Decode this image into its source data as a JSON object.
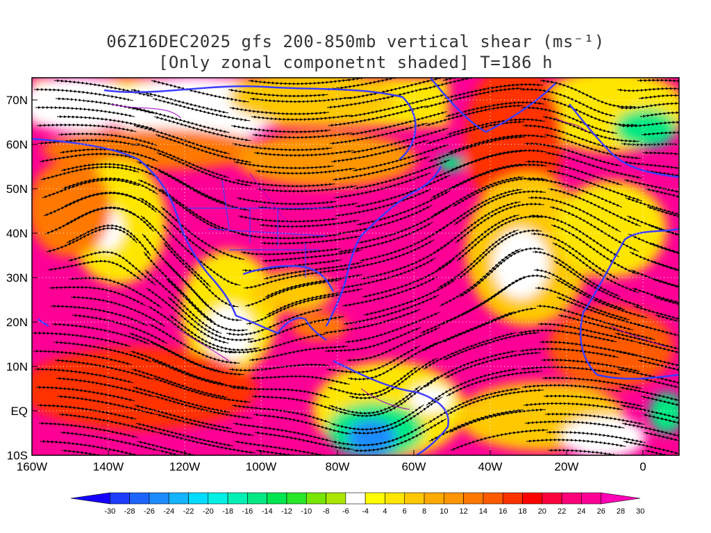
{
  "title": {
    "line1": "06Z16DEC2025 gfs 200-850mb vertical shear (ms⁻¹)",
    "line2": "[Only zonal componetnt shaded] T=186 h"
  },
  "axes": {
    "x_labels": [
      "160W",
      "140W",
      "120W",
      "100W",
      "80W",
      "60W",
      "40W",
      "20W",
      "0"
    ],
    "y_labels": [
      "70N",
      "60N",
      "50N",
      "40N",
      "30N",
      "20N",
      "10N",
      "EQ",
      "10S"
    ],
    "lon_range": [
      -160,
      10
    ],
    "lat_range": [
      -10,
      75
    ]
  },
  "colorbar": {
    "labels": [
      "-30",
      "-28",
      "-26",
      "-24",
      "-22",
      "-20",
      "-18",
      "-16",
      "-14",
      "-12",
      "-10",
      "-8",
      "-6",
      "-4",
      "4",
      "6",
      "8",
      "10",
      "12",
      "14",
      "16",
      "18",
      "20",
      "22",
      "24",
      "26",
      "28",
      "30"
    ],
    "colors": [
      "#1400ff",
      "#1e3cff",
      "#1e64ff",
      "#1e8cff",
      "#14b4ff",
      "#00dcff",
      "#00f0e6",
      "#00f0b4",
      "#00e882",
      "#00e650",
      "#28e628",
      "#78e600",
      "#aae600",
      "#ffffff",
      "#ffff00",
      "#ffe600",
      "#ffc800",
      "#ffaa00",
      "#ff9600",
      "#ff7800",
      "#ff5a00",
      "#ff3200",
      "#ff0000",
      "#ff003c",
      "#ff0078",
      "#ff0096",
      "#ff00b4"
    ]
  },
  "colors": {
    "coastline": "#3c3cff",
    "rivers": "#a000c8",
    "streamlines": "#000000",
    "grid": "#ffffff"
  }
}
